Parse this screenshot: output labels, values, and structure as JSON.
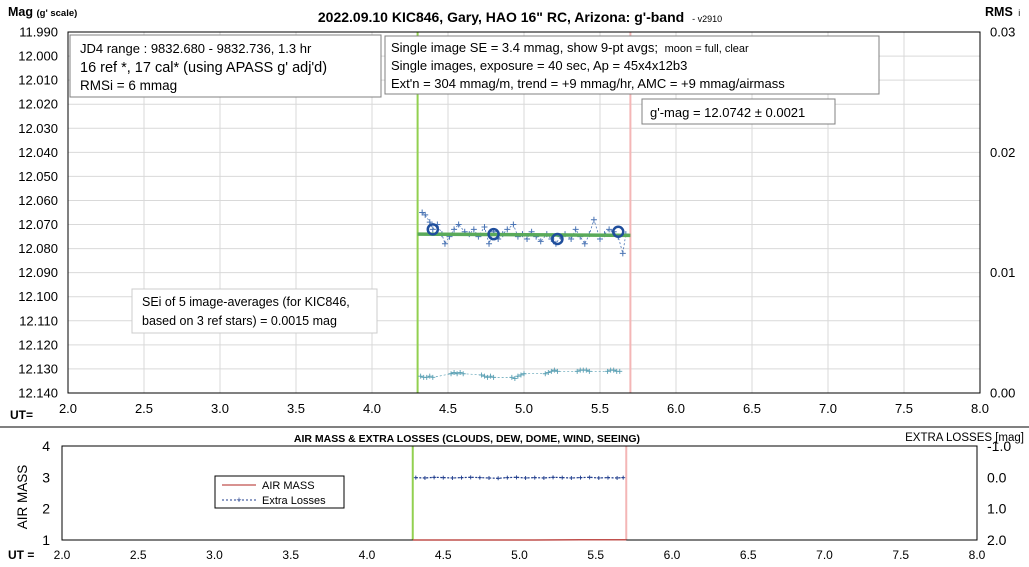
{
  "main": {
    "title": "2022.09.10 KIC846, Gary, HAO 16\" RC, Arizona: g'-band",
    "version": "- v2910",
    "left_label": "Mag",
    "left_label_note": "(g' scale)",
    "right_label": "RMS",
    "right_label_sub": "i",
    "ut_label": "UT=",
    "info_box_1": [
      "JD4 range : 9832.680 - 9832.736,  1.3 hr",
      "16 ref *, 17 cal* (using APASS g' adj'd)",
      "RMSi = 6 mmag"
    ],
    "info_box_2": {
      "line1_main": "Single image SE = 3.4 mmag, show  9-pt avgs;",
      "line1_small": "moon = full, clear",
      "line2": "Single images, exposure = 40 sec, Ap = 45x4x12b3",
      "line3": "Ext'n = 304 mmag/m, trend = +9 mmag/hr, AMC = +9 mmag/airmass"
    },
    "gmag_box": "g'-mag = 12.0742 ± 0.0021",
    "sei_box": [
      "SEi of 5 image-averages (for KIC846,",
      "based on 3 ref stars) = 0.0015 mag"
    ]
  },
  "bottom": {
    "title": "AIR MASS & EXTRA LOSSES (CLOUDS, DEW, DOME, WIND, SEEING)",
    "left_label": "AIR MASS",
    "right_label": "EXTRA LOSSES [mag]",
    "ut_label": "UT =",
    "legend": [
      "AIR MASS",
      "Extra Losses"
    ]
  },
  "chart_data": [
    {
      "type": "scatter",
      "x_axis": {
        "range": [
          2.0,
          8.0
        ],
        "ticks": [
          "2.0",
          "2.5",
          "3.0",
          "3.5",
          "4.0",
          "4.5",
          "5.0",
          "5.5",
          "6.0",
          "6.5",
          "7.0",
          "7.5",
          "8.0"
        ]
      },
      "y_axis_left": {
        "range": [
          11.99,
          12.14
        ],
        "inverted": true,
        "ticks": [
          "11.990",
          "12.000",
          "12.010",
          "12.020",
          "12.030",
          "12.040",
          "12.050",
          "12.060",
          "12.070",
          "12.080",
          "12.090",
          "12.100",
          "12.110",
          "12.120",
          "12.130",
          "12.140"
        ]
      },
      "y_axis_right": {
        "range": [
          0.0,
          0.03
        ],
        "ticks": [
          "0.03",
          "0.02",
          "0.01",
          "0.00"
        ]
      },
      "grid": true,
      "vertical_markers": [
        {
          "x": 4.3,
          "color": "#92d050"
        },
        {
          "x": 5.7,
          "color": "#f4b6b6"
        }
      ],
      "series": [
        {
          "kind": "single_images",
          "color": "#4a74b4",
          "x": [
            4.33,
            4.35,
            4.38,
            4.4,
            4.43,
            4.46,
            4.48,
            4.51,
            4.54,
            4.57,
            4.61,
            4.64,
            4.67,
            4.7,
            4.74,
            4.77,
            4.8,
            4.83,
            4.86,
            4.89,
            4.93,
            4.96,
            4.99,
            5.02,
            5.05,
            5.08,
            5.11,
            5.15,
            5.18,
            5.21,
            5.24,
            5.27,
            5.31,
            5.34,
            5.37,
            5.4,
            5.43,
            5.46,
            5.5,
            5.53,
            5.56,
            5.59,
            5.62,
            5.65,
            5.67
          ],
          "y": [
            12.065,
            12.066,
            12.069,
            12.072,
            12.07,
            12.074,
            12.078,
            12.075,
            12.072,
            12.07,
            12.073,
            12.074,
            12.072,
            12.075,
            12.071,
            12.078,
            12.073,
            12.076,
            12.074,
            12.072,
            12.07,
            12.075,
            12.074,
            12.076,
            12.073,
            12.075,
            12.077,
            12.074,
            12.076,
            12.078,
            12.075,
            12.074,
            12.076,
            12.072,
            12.075,
            12.078,
            12.074,
            12.068,
            12.076,
            12.074,
            12.072,
            12.073,
            12.075,
            12.082,
            12.074
          ]
        },
        {
          "kind": "9pt_averages",
          "color": "#1f4e9c",
          "x": [
            4.4,
            4.8,
            5.22,
            5.62
          ],
          "y": [
            12.072,
            12.074,
            12.076,
            12.073
          ]
        },
        {
          "kind": "trend",
          "color": "#5aaa5a",
          "x": [
            4.3,
            5.7
          ],
          "y": [
            12.074,
            12.0745
          ]
        },
        {
          "kind": "rms_per_image",
          "axis": "right",
          "color": "#5aa0b4",
          "x": [
            4.32,
            4.34,
            4.36,
            4.38,
            4.4,
            4.52,
            4.54,
            4.56,
            4.58,
            4.6,
            4.72,
            4.74,
            4.76,
            4.78,
            4.8,
            4.92,
            4.94,
            4.96,
            4.98,
            5.0,
            5.14,
            5.16,
            5.18,
            5.2,
            5.22,
            5.35,
            5.37,
            5.39,
            5.41,
            5.43,
            5.55,
            5.57,
            5.59,
            5.61,
            5.63
          ],
          "y": [
            0.0014,
            0.0013,
            0.0013,
            0.0014,
            0.0013,
            0.0016,
            0.0017,
            0.0016,
            0.0017,
            0.0016,
            0.0015,
            0.0014,
            0.0013,
            0.0014,
            0.0013,
            0.0013,
            0.0012,
            0.0014,
            0.0015,
            0.0016,
            0.0016,
            0.0017,
            0.0018,
            0.0019,
            0.0018,
            0.0018,
            0.0019,
            0.0019,
            0.0019,
            0.0018,
            0.0018,
            0.0019,
            0.0019,
            0.0018,
            0.0018
          ]
        }
      ]
    },
    {
      "type": "line",
      "x_axis": {
        "range": [
          2.0,
          8.0
        ],
        "ticks": [
          "2.0",
          "2.5",
          "3.0",
          "3.5",
          "4.0",
          "4.5",
          "5.0",
          "5.5",
          "6.0",
          "6.5",
          "7.0",
          "7.5",
          "8.0"
        ]
      },
      "y_axis_left": {
        "range": [
          1,
          4
        ],
        "ticks": [
          "4",
          "3",
          "2",
          "1"
        ]
      },
      "y_axis_right": {
        "range": [
          -1.0,
          2.0
        ],
        "inverted": true,
        "ticks": [
          "-1.0",
          "0.0",
          "1.0",
          "2.0"
        ]
      },
      "grid": false,
      "vertical_markers": [
        {
          "x": 4.3,
          "color": "#92d050"
        },
        {
          "x": 5.7,
          "color": "#f4b6b6"
        }
      ],
      "series": [
        {
          "name": "AIR MASS",
          "color": "#c0504d",
          "x": [
            4.3,
            4.7,
            5.1,
            5.4,
            5.7
          ],
          "y": [
            1.0,
            1.0,
            1.0,
            1.01,
            1.01
          ]
        },
        {
          "name": "Extra Losses",
          "color": "#1f3c8c",
          "x": [
            4.32,
            4.38,
            4.44,
            4.5,
            4.56,
            4.62,
            4.68,
            4.74,
            4.8,
            4.86,
            4.92,
            4.98,
            5.04,
            5.1,
            5.16,
            5.22,
            5.28,
            5.34,
            5.4,
            5.46,
            5.52,
            5.58,
            5.64,
            5.68
          ],
          "y": [
            0.01,
            0.02,
            0.0,
            0.01,
            0.02,
            0.01,
            0.0,
            0.01,
            0.02,
            0.03,
            0.01,
            0.0,
            0.02,
            0.01,
            0.02,
            0.0,
            0.01,
            0.02,
            0.01,
            0.0,
            0.02,
            0.01,
            0.02,
            0.01
          ]
        }
      ]
    }
  ]
}
